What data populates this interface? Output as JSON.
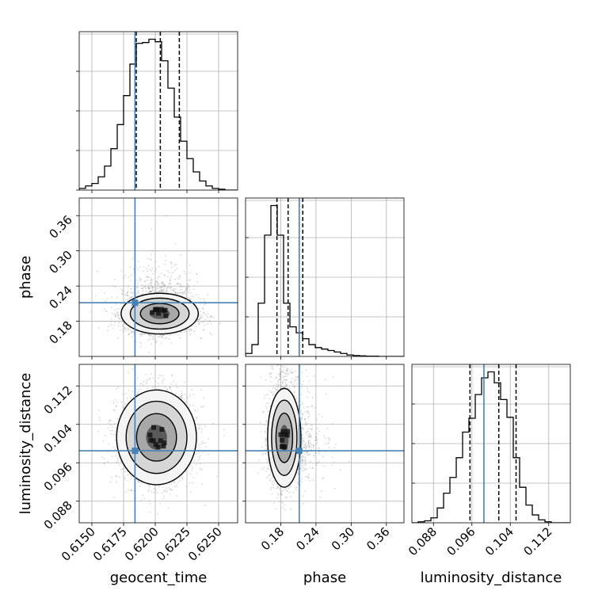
{
  "chart_data": {
    "type": "corner",
    "grid": true,
    "colors": {
      "truth": "#4682b4",
      "hist": "#000000",
      "scatter": "#8c8c8c",
      "density": "#000000"
    },
    "parameters": [
      {
        "name": "geocent_time",
        "label": "geocent_time",
        "range": [
          0.614,
          0.6265
        ],
        "ticks": [
          0.615,
          0.6175,
          0.62,
          0.6225,
          0.625
        ],
        "tick_labels": [
          "0.6150",
          "0.6175",
          "0.6200",
          "0.6225",
          "0.6250"
        ],
        "truth": 0.6184,
        "quantiles": [
          0.6185,
          0.6204,
          0.6219
        ],
        "hist_edges_start": 0.614,
        "hist_bin_width": 0.0005,
        "hist_counts": [
          2,
          5,
          8,
          16,
          29,
          50,
          79,
          114,
          152,
          177,
          178,
          182,
          179,
          156,
          123,
          88,
          59,
          38,
          22,
          11,
          5,
          2,
          1,
          0,
          0
        ]
      },
      {
        "name": "phase",
        "label": "phase",
        "range": [
          0.12,
          0.39
        ],
        "ticks": [
          0.18,
          0.24,
          0.3,
          0.36
        ],
        "tick_labels": [
          "0.18",
          "0.24",
          "0.30",
          "0.36"
        ],
        "truth": 0.2115,
        "quantiles": [
          0.1735,
          0.1925,
          0.2175
        ],
        "hist_edges_start": 0.12,
        "hist_bin_width": 0.0108,
        "hist_counts": [
          1,
          4,
          18,
          41,
          51,
          41,
          18,
          10,
          8,
          6,
          4,
          3,
          2.5,
          2,
          1.5,
          1,
          0.5,
          0.3,
          0.2,
          0.1,
          0.1,
          0,
          0,
          0,
          0
        ]
      },
      {
        "name": "luminosity_distance",
        "label": "luminosity_distance",
        "range": [
          0.0835,
          0.1165
        ],
        "ticks": [
          0.088,
          0.096,
          0.104,
          0.112
        ],
        "tick_labels": [
          "0.088",
          "0.096",
          "0.104",
          "0.112"
        ],
        "truth": 0.0985,
        "quantiles": [
          0.0956,
          0.1016,
          0.1052
        ],
        "hist_edges_start": 0.0835,
        "hist_bin_width": 0.00132,
        "hist_counts": [
          0,
          1,
          2,
          5,
          15,
          30,
          46,
          66,
          92,
          106,
          130,
          147,
          153,
          142,
          125,
          107,
          66,
          36,
          18,
          8,
          3,
          1,
          0,
          0,
          0
        ]
      }
    ],
    "pairs": [
      {
        "x": "geocent_time",
        "y": "phase",
        "mean": [
          0.62035,
          0.193
        ],
        "sd": [
          0.00145,
          0.0165
        ],
        "skew_up": 0.024
      },
      {
        "x": "geocent_time",
        "y": "luminosity_distance",
        "mean": [
          0.6201,
          0.1013
        ],
        "sd": [
          0.0015,
          0.0047
        ],
        "skew_up": 0
      },
      {
        "x": "phase",
        "y": "luminosity_distance",
        "mean": [
          0.186,
          0.1012
        ],
        "sd": [
          0.0135,
          0.0049
        ],
        "skew_up": 0.03
      }
    ]
  }
}
